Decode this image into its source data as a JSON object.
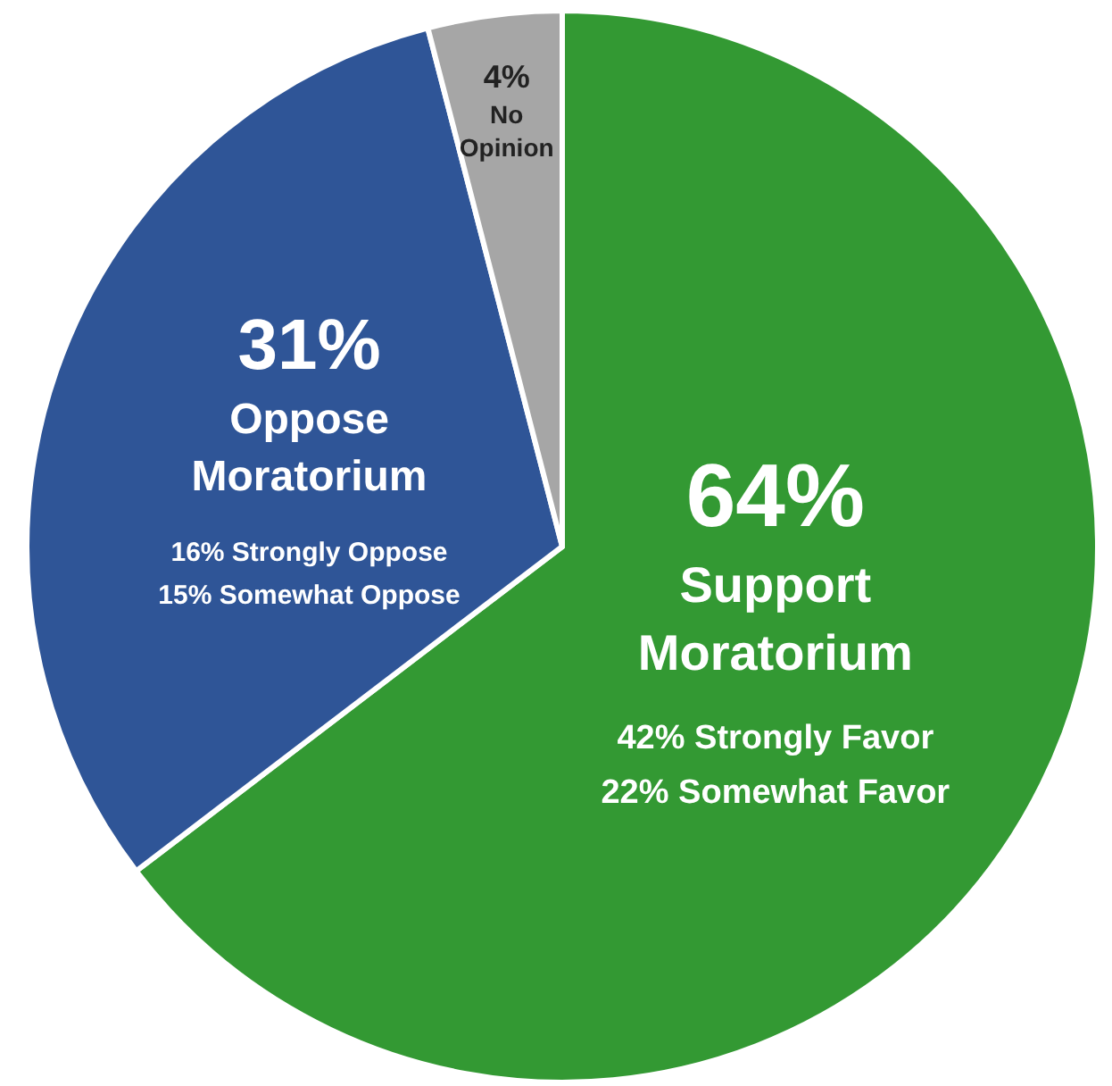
{
  "chart_data": {
    "type": "pie",
    "categories": [
      "Support Moratorium",
      "Oppose Moratorium",
      "No Opinion"
    ],
    "values": [
      64,
      31,
      4
    ],
    "colors": [
      "#339933",
      "#2f5597",
      "#a6a6a6"
    ],
    "annotations": [
      "42% Strongly Favor\n22% Somewhat Favor",
      "16% Strongly Oppose\n15% Somewhat Oppose",
      null
    ],
    "value_labels": [
      "64%",
      "31%",
      "4%"
    ],
    "legend": false
  }
}
